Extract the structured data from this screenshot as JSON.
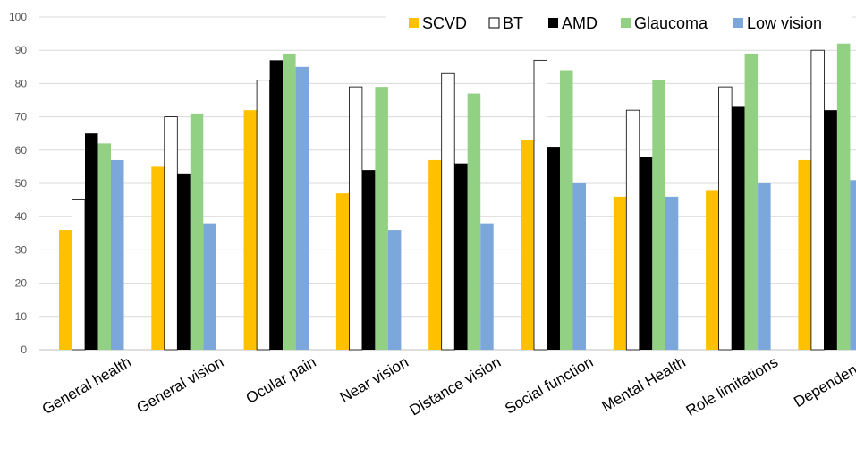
{
  "chart_data": {
    "type": "bar",
    "title": "",
    "xlabel": "",
    "ylabel": "",
    "ylim": [
      0,
      100
    ],
    "yticks": [
      0,
      10,
      20,
      30,
      40,
      50,
      60,
      70,
      80,
      90,
      100
    ],
    "grid": true,
    "legend_position": "top-right",
    "categories": [
      "General health",
      "General vision",
      "Ocular pain",
      "Near vision",
      "Distance vision",
      "Social function",
      "Mental  Health",
      "Role limitations",
      "Dependency"
    ],
    "series": [
      {
        "name": "SCVD",
        "color": "#FFC000",
        "values": [
          36,
          55,
          72,
          47,
          57,
          63,
          46,
          48,
          57
        ]
      },
      {
        "name": "BT",
        "color": "#FFFFFF",
        "values": [
          45,
          70,
          81,
          79,
          83,
          87,
          72,
          79,
          90
        ]
      },
      {
        "name": "AMD",
        "color": "#000000",
        "values": [
          65,
          53,
          87,
          54,
          56,
          61,
          58,
          73,
          72
        ]
      },
      {
        "name": "Glaucoma",
        "color": "#92D084",
        "values": [
          62,
          71,
          89,
          79,
          77,
          84,
          81,
          89,
          92
        ]
      },
      {
        "name": "Low vision",
        "color": "#7BA7DB",
        "values": [
          57,
          38,
          85,
          36,
          38,
          50,
          46,
          50,
          51
        ]
      }
    ]
  }
}
